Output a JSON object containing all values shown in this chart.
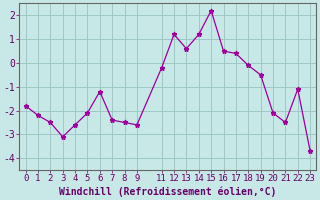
{
  "x": [
    0,
    1,
    2,
    3,
    4,
    5,
    6,
    7,
    8,
    9,
    11,
    12,
    13,
    14,
    15,
    16,
    17,
    18,
    19,
    20,
    21,
    22,
    23
  ],
  "y": [
    -1.8,
    -2.2,
    -2.5,
    -3.1,
    -2.6,
    -2.1,
    -1.2,
    -2.4,
    -2.5,
    -2.6,
    -0.2,
    1.2,
    0.6,
    1.2,
    2.2,
    0.5,
    0.4,
    -0.1,
    -0.5,
    -2.1,
    -2.5,
    -1.1,
    -3.7
  ],
  "line_color": "#990099",
  "marker": "*",
  "bg_color": "#c8e8e8",
  "grid_color": "#a0c8c8",
  "xlabel": "Windchill (Refroidissement éolien,°C)",
  "xlabel_color": "#660066",
  "tick_color": "#660066",
  "spine_color": "#666666",
  "ylim": [
    -4.5,
    2.5
  ],
  "yticks": [
    -4,
    -3,
    -2,
    -1,
    0,
    1,
    2
  ],
  "xticks": [
    0,
    1,
    2,
    3,
    4,
    5,
    6,
    7,
    8,
    9,
    11,
    12,
    13,
    14,
    15,
    16,
    17,
    18,
    19,
    20,
    21,
    22,
    23
  ],
  "font_size": 6.5
}
